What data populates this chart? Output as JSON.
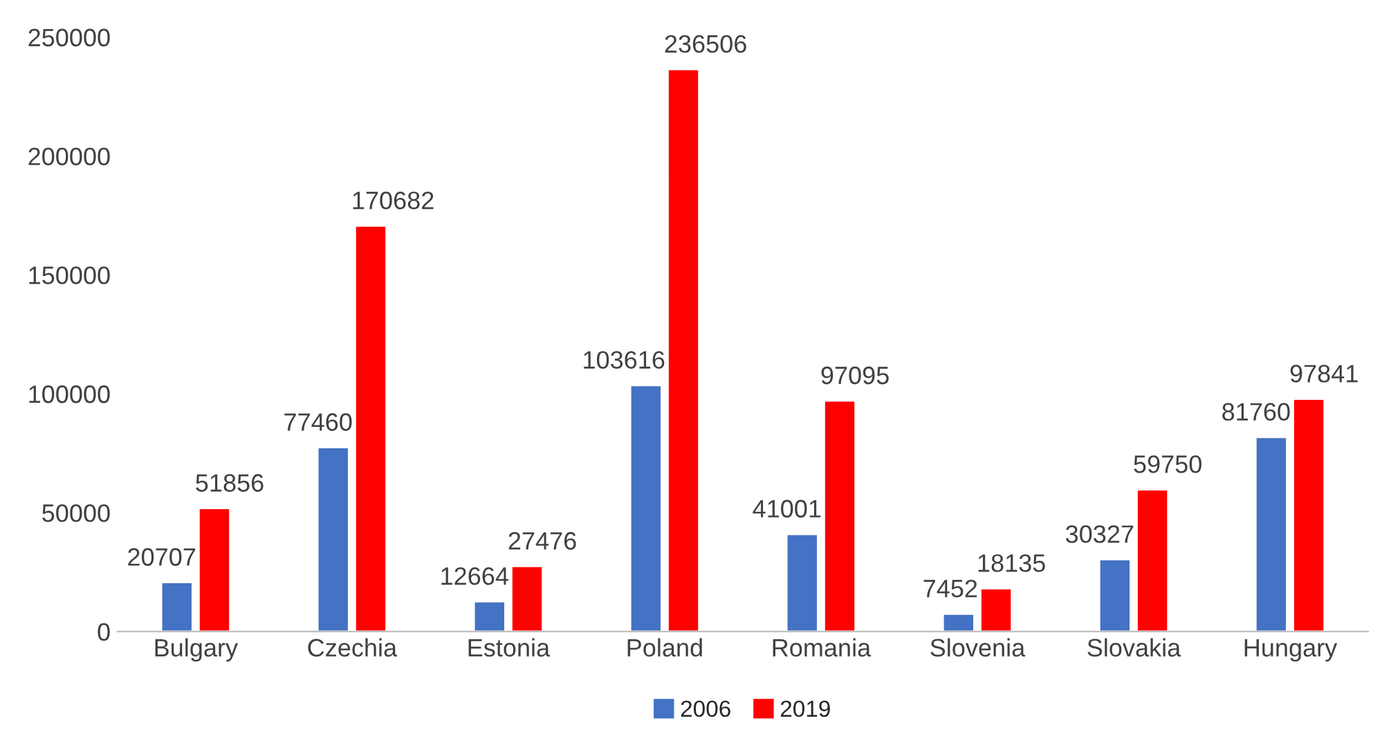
{
  "chart_data": {
    "type": "bar",
    "categories": [
      "Bulgary",
      "Czechia",
      "Estonia",
      "Poland",
      "Romania",
      "Slovenia",
      "Slovakia",
      "Hungary"
    ],
    "series": [
      {
        "name": "2006",
        "color": "#4472c4",
        "values": [
          20707,
          77460,
          12664,
          103616,
          41001,
          7452,
          30327,
          81760
        ]
      },
      {
        "name": "2019",
        "color": "#ff0000",
        "values": [
          51856,
          170682,
          27476,
          236506,
          97095,
          18135,
          59750,
          97841
        ]
      }
    ],
    "ylim": [
      0,
      250000
    ],
    "yticks": [
      0,
      50000,
      100000,
      150000,
      200000,
      250000
    ],
    "grid": false,
    "legend": "bottom",
    "data_labels": true
  }
}
